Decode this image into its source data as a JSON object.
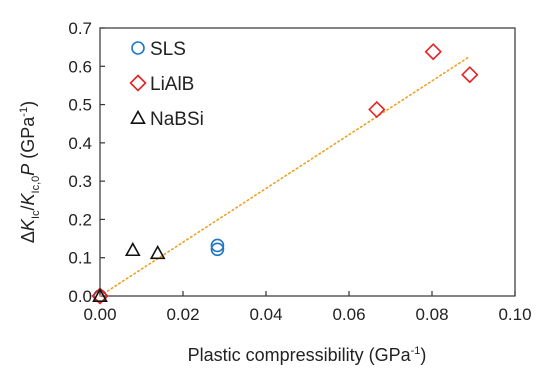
{
  "chart_data": {
    "type": "scatter",
    "title": "",
    "xlabel": {
      "main": "Plastic compressibility (GPa",
      "sup": "-1",
      "close": ")"
    },
    "ylabel": {
      "delta": "Δ",
      "k1": "K",
      "k1_sub": "Ic",
      "slash": "/",
      "k2": "K",
      "k2_sub": "Ic,0",
      "p": "P",
      "unit_open": " (GPa",
      "unit_sup": "-1",
      "unit_close": ")"
    },
    "xlim": [
      0,
      0.1
    ],
    "ylim": [
      0,
      0.7
    ],
    "xticks": [
      0,
      0.02,
      0.04,
      0.06,
      0.08,
      0.1
    ],
    "yticks": [
      0,
      0.1,
      0.2,
      0.3,
      0.4,
      0.5,
      0.6,
      0.7
    ],
    "xtick_labels": [
      "0.00",
      "0.02",
      "0.04",
      "0.06",
      "0.08",
      "0.10"
    ],
    "ytick_labels": [
      "0.0",
      "0.1",
      "0.2",
      "0.3",
      "0.4",
      "0.5",
      "0.6",
      "0.7"
    ],
    "grid": false,
    "legend_position": "top-left",
    "series": [
      {
        "name": "SLS",
        "marker": "circle",
        "color": "#1f77c4",
        "points": [
          [
            0,
            0
          ],
          [
            0.0283,
            0.132
          ],
          [
            0.0283,
            0.122
          ]
        ]
      },
      {
        "name": "LiAlB",
        "marker": "diamond",
        "color": "#e52222",
        "points": [
          [
            0,
            0
          ],
          [
            0.0667,
            0.487
          ],
          [
            0.0803,
            0.638
          ],
          [
            0.0891,
            0.578
          ]
        ]
      },
      {
        "name": "NaBSi",
        "marker": "triangle",
        "color": "#111111",
        "points": [
          [
            0,
            0
          ],
          [
            0.0079,
            0.12
          ],
          [
            0.0139,
            0.112
          ]
        ]
      }
    ],
    "trendline": {
      "style": "dotted",
      "color": "#f0a020",
      "x": [
        0,
        0.089
      ],
      "y": [
        0,
        0.625
      ]
    }
  }
}
